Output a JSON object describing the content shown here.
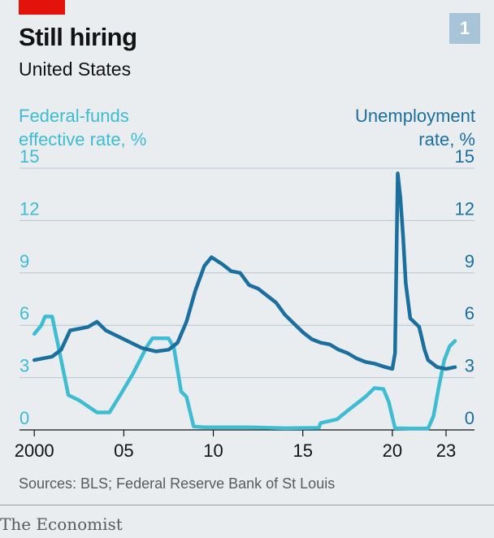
{
  "header": {
    "title": "Still hiring",
    "subtitle": "United States",
    "chart_number": "1"
  },
  "axes": {
    "left_label_lines": [
      "Federal-funds",
      "effective rate, %"
    ],
    "right_label_lines": [
      "Unemployment",
      "rate, %"
    ]
  },
  "footer": {
    "source": "Sources: BLS; Federal Reserve Bank of St Louis",
    "brand": "The Economist"
  },
  "colors": {
    "fed_funds": "#3ebcd2",
    "unemployment": "#1a6f9f",
    "background": "#e9edf0",
    "brand_red": "#e3120b"
  },
  "chart_data": {
    "type": "line",
    "title": "Still hiring",
    "subtitle": "United States",
    "xlim": [
      1999.9,
      2023.5
    ],
    "ylim": [
      0,
      15
    ],
    "y_ticks": [
      0,
      3,
      6,
      9,
      12,
      15
    ],
    "x_ticks": [
      2000,
      2005,
      2010,
      2015,
      2020,
      2023
    ],
    "x_tick_labels": [
      "2000",
      "05",
      "10",
      "15",
      "20",
      "23"
    ],
    "grid": "horizontal",
    "legend": "axis titles top-left and top-right",
    "series": [
      {
        "name": "Federal-funds effective rate, %",
        "axis": "left",
        "points": [
          [
            2000.0,
            5.5
          ],
          [
            2000.4,
            6.0
          ],
          [
            2000.6,
            6.5
          ],
          [
            2001.0,
            6.5
          ],
          [
            2001.5,
            4.0
          ],
          [
            2001.9,
            2.0
          ],
          [
            2002.5,
            1.7
          ],
          [
            2003.5,
            1.0
          ],
          [
            2004.2,
            1.0
          ],
          [
            2004.8,
            2.0
          ],
          [
            2005.5,
            3.2
          ],
          [
            2006.3,
            4.8
          ],
          [
            2006.6,
            5.25
          ],
          [
            2007.5,
            5.25
          ],
          [
            2007.8,
            4.7
          ],
          [
            2008.2,
            2.2
          ],
          [
            2008.5,
            1.9
          ],
          [
            2008.9,
            0.2
          ],
          [
            2009.5,
            0.15
          ],
          [
            2012.0,
            0.15
          ],
          [
            2014.0,
            0.1
          ],
          [
            2015.9,
            0.12
          ],
          [
            2016.0,
            0.4
          ],
          [
            2016.9,
            0.6
          ],
          [
            2017.5,
            1.1
          ],
          [
            2018.0,
            1.5
          ],
          [
            2018.5,
            1.9
          ],
          [
            2019.0,
            2.4
          ],
          [
            2019.5,
            2.35
          ],
          [
            2019.8,
            1.6
          ],
          [
            2020.15,
            0.1
          ],
          [
            2021.0,
            0.08
          ],
          [
            2022.0,
            0.08
          ],
          [
            2022.3,
            0.8
          ],
          [
            2022.6,
            2.5
          ],
          [
            2022.9,
            4.0
          ],
          [
            2023.2,
            4.8
          ],
          [
            2023.5,
            5.1
          ]
        ]
      },
      {
        "name": "Unemployment rate, %",
        "axis": "right",
        "points": [
          [
            2000.0,
            4.0
          ],
          [
            2001.0,
            4.2
          ],
          [
            2001.5,
            4.6
          ],
          [
            2002.0,
            5.7
          ],
          [
            2002.5,
            5.8
          ],
          [
            2003.0,
            5.9
          ],
          [
            2003.5,
            6.2
          ],
          [
            2004.0,
            5.7
          ],
          [
            2005.0,
            5.2
          ],
          [
            2006.0,
            4.7
          ],
          [
            2006.8,
            4.5
          ],
          [
            2007.5,
            4.6
          ],
          [
            2008.0,
            5.0
          ],
          [
            2008.5,
            6.2
          ],
          [
            2009.0,
            8.0
          ],
          [
            2009.5,
            9.4
          ],
          [
            2009.9,
            9.9
          ],
          [
            2010.5,
            9.5
          ],
          [
            2011.0,
            9.1
          ],
          [
            2011.5,
            9.0
          ],
          [
            2012.0,
            8.3
          ],
          [
            2012.5,
            8.1
          ],
          [
            2013.0,
            7.7
          ],
          [
            2013.5,
            7.3
          ],
          [
            2014.0,
            6.6
          ],
          [
            2014.5,
            6.1
          ],
          [
            2015.0,
            5.6
          ],
          [
            2015.5,
            5.2
          ],
          [
            2016.0,
            5.0
          ],
          [
            2016.5,
            4.9
          ],
          [
            2017.0,
            4.6
          ],
          [
            2017.5,
            4.4
          ],
          [
            2018.0,
            4.1
          ],
          [
            2018.5,
            3.9
          ],
          [
            2019.0,
            3.8
          ],
          [
            2019.6,
            3.6
          ],
          [
            2020.0,
            3.5
          ],
          [
            2020.15,
            4.4
          ],
          [
            2020.3,
            14.7
          ],
          [
            2020.45,
            13.3
          ],
          [
            2020.6,
            11.1
          ],
          [
            2020.75,
            8.4
          ],
          [
            2021.0,
            6.4
          ],
          [
            2021.5,
            5.9
          ],
          [
            2021.8,
            4.6
          ],
          [
            2022.0,
            4.0
          ],
          [
            2022.5,
            3.6
          ],
          [
            2023.0,
            3.5
          ],
          [
            2023.5,
            3.6
          ]
        ]
      }
    ]
  }
}
